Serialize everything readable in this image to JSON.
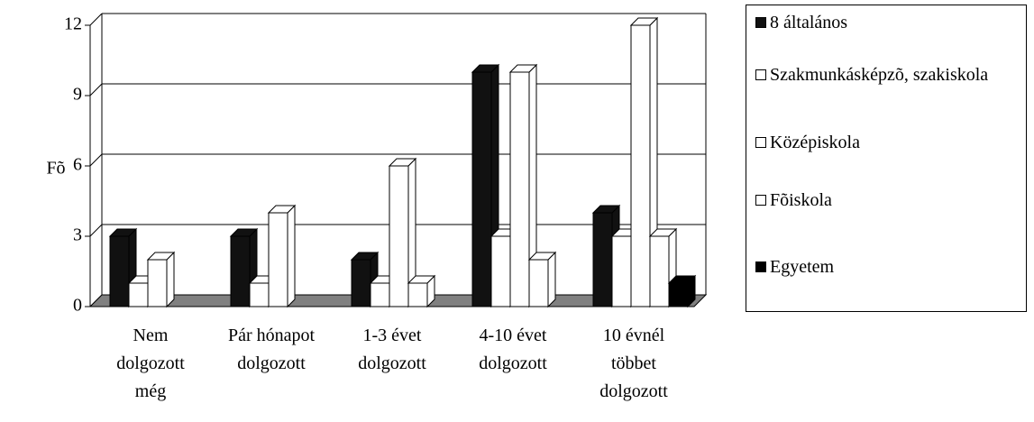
{
  "chart_data": {
    "type": "bar3d",
    "y_label": "Fõ",
    "categories": [
      "Nem dolgozott még",
      "Pár hónapot dolgozott",
      "1-3 évet dolgozott",
      "4-10 évet dolgozott",
      "10 évnél többet dolgozott"
    ],
    "series": [
      {
        "name": "8 általános",
        "color": "#111111",
        "values": [
          3,
          3,
          2,
          10,
          4
        ]
      },
      {
        "name": "Szakmunkásképzõ, szakiskola",
        "color": "#ffffff",
        "values": [
          1,
          1,
          1,
          3,
          3
        ]
      },
      {
        "name": "Középiskola",
        "color": "#ffffff",
        "values": [
          2,
          4,
          6,
          10,
          12
        ]
      },
      {
        "name": "Fõiskola",
        "color": "#ffffff",
        "values": [
          0,
          0,
          1,
          2,
          3
        ]
      },
      {
        "name": "Egyetem",
        "color": "#000000",
        "values": [
          0,
          0,
          0,
          0,
          1
        ]
      }
    ],
    "ylim": [
      0,
      12
    ],
    "yticks": [
      0,
      3,
      6,
      9,
      12
    ],
    "grid": true,
    "legend": "right"
  }
}
